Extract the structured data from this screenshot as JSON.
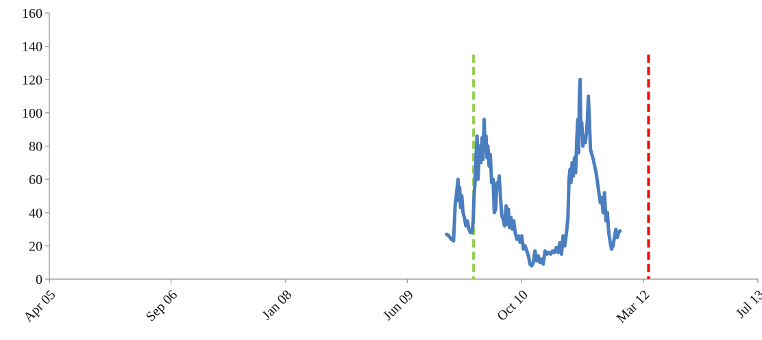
{
  "chart_data": {
    "type": "line",
    "title": "",
    "xlabel": "",
    "ylabel": "",
    "x_axis": {
      "min": "2005-04-01",
      "max": "2013-07-01",
      "tick_dates": [
        "2005-04-01",
        "2006-09-01",
        "2008-01-01",
        "2009-06-01",
        "2010-10-01",
        "2012-03-01",
        "2013-07-01"
      ],
      "tick_labels": [
        "Apr 05",
        "Sep 06",
        "Jan 08",
        "Jun 09",
        "Oct 10",
        "Mar 12",
        "Jul 13"
      ]
    },
    "y_axis": {
      "min": 0,
      "max": 160,
      "ticks": [
        0,
        20,
        40,
        60,
        80,
        100,
        120,
        140,
        160
      ],
      "tick_labels": [
        "0",
        "20",
        "40",
        "60",
        "80",
        "100",
        "120",
        "140",
        "160"
      ]
    },
    "grid": false,
    "legend": "none",
    "series": [
      {
        "color": "#4a7ebf",
        "points": [
          [
            "2009-11-15",
            27
          ],
          [
            "2009-11-25",
            26
          ],
          [
            "2009-12-05",
            24
          ],
          [
            "2009-12-15",
            23
          ],
          [
            "2009-12-22",
            45
          ],
          [
            "2009-12-28",
            52
          ],
          [
            "2010-01-03",
            60
          ],
          [
            "2010-01-06",
            47
          ],
          [
            "2010-01-10",
            55
          ],
          [
            "2010-01-14",
            43
          ],
          [
            "2010-01-19",
            50
          ],
          [
            "2010-01-24",
            40
          ],
          [
            "2010-01-30",
            37
          ],
          [
            "2010-02-05",
            32
          ],
          [
            "2010-02-12",
            35
          ],
          [
            "2010-02-18",
            30
          ],
          [
            "2010-02-24",
            28
          ],
          [
            "2010-03-03",
            28
          ],
          [
            "2010-03-08",
            34
          ],
          [
            "2010-03-12",
            50
          ],
          [
            "2010-03-16",
            58
          ],
          [
            "2010-03-20",
            72
          ],
          [
            "2010-03-25",
            86
          ],
          [
            "2010-03-29",
            60
          ],
          [
            "2010-04-04",
            80
          ],
          [
            "2010-04-10",
            70
          ],
          [
            "2010-04-15",
            85
          ],
          [
            "2010-04-19",
            72
          ],
          [
            "2010-04-24",
            96
          ],
          [
            "2010-04-28",
            80
          ],
          [
            "2010-05-02",
            86
          ],
          [
            "2010-05-06",
            73
          ],
          [
            "2010-05-10",
            80
          ],
          [
            "2010-05-15",
            68
          ],
          [
            "2010-05-20",
            75
          ],
          [
            "2010-05-26",
            58
          ],
          [
            "2010-06-01",
            60
          ],
          [
            "2010-06-06",
            40
          ],
          [
            "2010-06-12",
            42
          ],
          [
            "2010-06-17",
            58
          ],
          [
            "2010-06-22",
            55
          ],
          [
            "2010-06-27",
            62
          ],
          [
            "2010-07-03",
            48
          ],
          [
            "2010-07-08",
            38
          ],
          [
            "2010-07-14",
            36
          ],
          [
            "2010-07-20",
            32
          ],
          [
            "2010-07-26",
            44
          ],
          [
            "2010-07-31",
            33
          ],
          [
            "2010-08-05",
            42
          ],
          [
            "2010-08-10",
            31
          ],
          [
            "2010-08-16",
            37
          ],
          [
            "2010-08-22",
            30
          ],
          [
            "2010-08-28",
            35
          ],
          [
            "2010-09-03",
            28
          ],
          [
            "2010-09-10",
            24
          ],
          [
            "2010-09-17",
            26
          ],
          [
            "2010-09-24",
            22
          ],
          [
            "2010-10-01",
            26
          ],
          [
            "2010-10-08",
            18
          ],
          [
            "2010-10-15",
            20
          ],
          [
            "2010-10-22",
            17
          ],
          [
            "2010-10-29",
            14
          ],
          [
            "2010-11-05",
            9
          ],
          [
            "2010-11-12",
            8
          ],
          [
            "2010-11-19",
            10
          ],
          [
            "2010-11-26",
            17
          ],
          [
            "2010-12-03",
            11
          ],
          [
            "2010-12-10",
            14
          ],
          [
            "2010-12-17",
            10
          ],
          [
            "2010-12-24",
            12
          ],
          [
            "2010-12-31",
            9
          ],
          [
            "2011-01-08",
            17
          ],
          [
            "2011-01-16",
            15
          ],
          [
            "2011-01-24",
            16
          ],
          [
            "2011-02-01",
            15
          ],
          [
            "2011-02-09",
            17
          ],
          [
            "2011-02-17",
            16
          ],
          [
            "2011-02-25",
            19
          ],
          [
            "2011-03-05",
            16
          ],
          [
            "2011-03-12",
            22
          ],
          [
            "2011-03-19",
            15
          ],
          [
            "2011-03-26",
            26
          ],
          [
            "2011-04-02",
            20
          ],
          [
            "2011-04-09",
            28
          ],
          [
            "2011-04-15",
            36
          ],
          [
            "2011-04-20",
            60
          ],
          [
            "2011-04-24",
            66
          ],
          [
            "2011-04-28",
            58
          ],
          [
            "2011-05-03",
            70
          ],
          [
            "2011-05-08",
            62
          ],
          [
            "2011-05-13",
            73
          ],
          [
            "2011-05-18",
            64
          ],
          [
            "2011-05-23",
            85
          ],
          [
            "2011-05-27",
            96
          ],
          [
            "2011-05-31",
            76
          ],
          [
            "2011-06-03",
            112
          ],
          [
            "2011-06-06",
            120
          ],
          [
            "2011-06-09",
            90
          ],
          [
            "2011-06-13",
            94
          ],
          [
            "2011-06-18",
            80
          ],
          [
            "2011-06-23",
            86
          ],
          [
            "2011-06-28",
            82
          ],
          [
            "2011-07-03",
            88
          ],
          [
            "2011-07-07",
            96
          ],
          [
            "2011-07-11",
            110
          ],
          [
            "2011-07-15",
            98
          ],
          [
            "2011-07-20",
            78
          ],
          [
            "2011-07-26",
            75
          ],
          [
            "2011-08-01",
            72
          ],
          [
            "2011-08-07",
            68
          ],
          [
            "2011-08-13",
            64
          ],
          [
            "2011-08-19",
            58
          ],
          [
            "2011-08-25",
            52
          ],
          [
            "2011-08-31",
            46
          ],
          [
            "2011-09-06",
            49
          ],
          [
            "2011-09-12",
            40
          ],
          [
            "2011-09-18",
            52
          ],
          [
            "2011-09-24",
            35
          ],
          [
            "2011-09-30",
            40
          ],
          [
            "2011-10-06",
            28
          ],
          [
            "2011-10-12",
            22
          ],
          [
            "2011-10-18",
            18
          ],
          [
            "2011-10-24",
            20
          ],
          [
            "2011-10-30",
            25
          ],
          [
            "2011-11-05",
            30
          ],
          [
            "2011-11-11",
            25
          ],
          [
            "2011-11-17",
            28
          ],
          [
            "2011-11-23",
            29
          ]
        ]
      }
    ],
    "vertical_lines": [
      {
        "x": "2010-03-10",
        "color": "#92d050",
        "style": "dashed",
        "y_top": 135
      },
      {
        "x": "2012-03-23",
        "color": "#ff0000",
        "style": "dashed",
        "y_top": 135
      }
    ]
  }
}
